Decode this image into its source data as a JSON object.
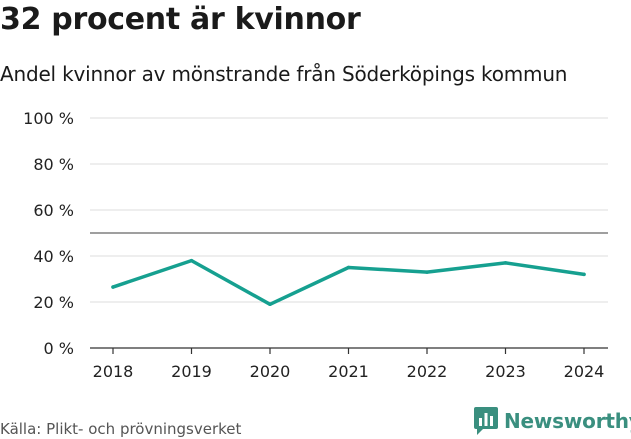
{
  "title": "32 procent är kvinnor",
  "subtitle": "Andel kvinnor av mönstrande från Söderköpings kommun",
  "source": "Källa: Plikt- och prövningsverket",
  "brand": "Newsworthy",
  "colors": {
    "line": "#16a090",
    "grid": "#dddddd",
    "reference": "#666666",
    "axis": "#333333",
    "brand": "#3a8f7f"
  },
  "chart_data": {
    "type": "line",
    "title": "32 procent är kvinnor",
    "subtitle": "Andel kvinnor av mönstrande från Söderköpings kommun",
    "xlabel": "",
    "ylabel": "",
    "categories": [
      "2018",
      "2019",
      "2020",
      "2021",
      "2022",
      "2023",
      "2024"
    ],
    "series": [
      {
        "name": "Andel kvinnor",
        "values": [
          26.5,
          38,
          19,
          35,
          33,
          37,
          32
        ]
      }
    ],
    "reference_line": 50,
    "ylim": [
      0,
      100
    ],
    "yticks": [
      0,
      20,
      40,
      60,
      80,
      100
    ],
    "ytick_labels": [
      "0 %",
      "20 %",
      "40 %",
      "60 %",
      "80 %",
      "100 %"
    ],
    "grid": true
  }
}
